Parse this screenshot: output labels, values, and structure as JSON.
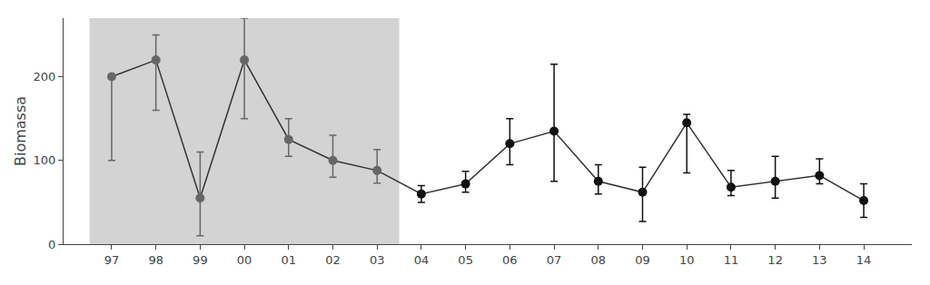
{
  "chart_data": {
    "type": "line",
    "categories": [
      "97",
      "98",
      "99",
      "00",
      "01",
      "02",
      "03",
      "04",
      "05",
      "06",
      "07",
      "08",
      "09",
      "10",
      "11",
      "12",
      "13",
      "14"
    ],
    "values": [
      200,
      220,
      55,
      220,
      125,
      100,
      88,
      60,
      72,
      120,
      135,
      75,
      62,
      145,
      68,
      75,
      82,
      52
    ],
    "error_low": [
      100,
      60,
      45,
      70,
      20,
      20,
      15,
      10,
      10,
      25,
      60,
      15,
      35,
      60,
      10,
      20,
      10,
      20
    ],
    "error_high": [
      0,
      30,
      55,
      50,
      25,
      30,
      25,
      10,
      15,
      30,
      80,
      20,
      30,
      10,
      20,
      30,
      20,
      20
    ],
    "color": "#333333",
    "colors": [
      "#666666",
      "#666666",
      "#666666",
      "#666666",
      "#666666",
      "#666666",
      "#666666",
      "#111111",
      "#111111",
      "#111111",
      "#111111",
      "#111111",
      "#111111",
      "#111111",
      "#111111",
      "#111111",
      "#111111",
      "#111111"
    ],
    "marker": "circle",
    "shaded": {
      "from": "97",
      "to": "03",
      "color": "#d3d3d3"
    },
    "ylabel": "Biomassa",
    "ylim": [
      0,
      270
    ],
    "yticks": [
      0,
      100,
      200
    ],
    "grid": false
  }
}
